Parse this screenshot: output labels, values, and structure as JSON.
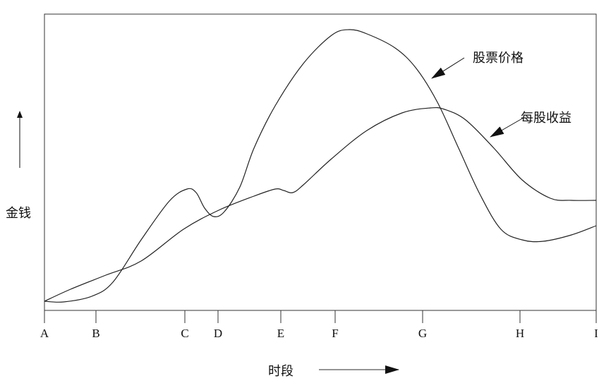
{
  "y_label": "金钱",
  "x_label": "时段",
  "ticks": [
    "A",
    "B",
    "C",
    "D",
    "E",
    "F",
    "G",
    "H",
    "I"
  ],
  "curves": {
    "stock_price": {
      "label": "股票价格"
    },
    "eps": {
      "label": "每股收益"
    }
  },
  "colors": {
    "line": "#222222",
    "arrow": "#111111"
  }
}
